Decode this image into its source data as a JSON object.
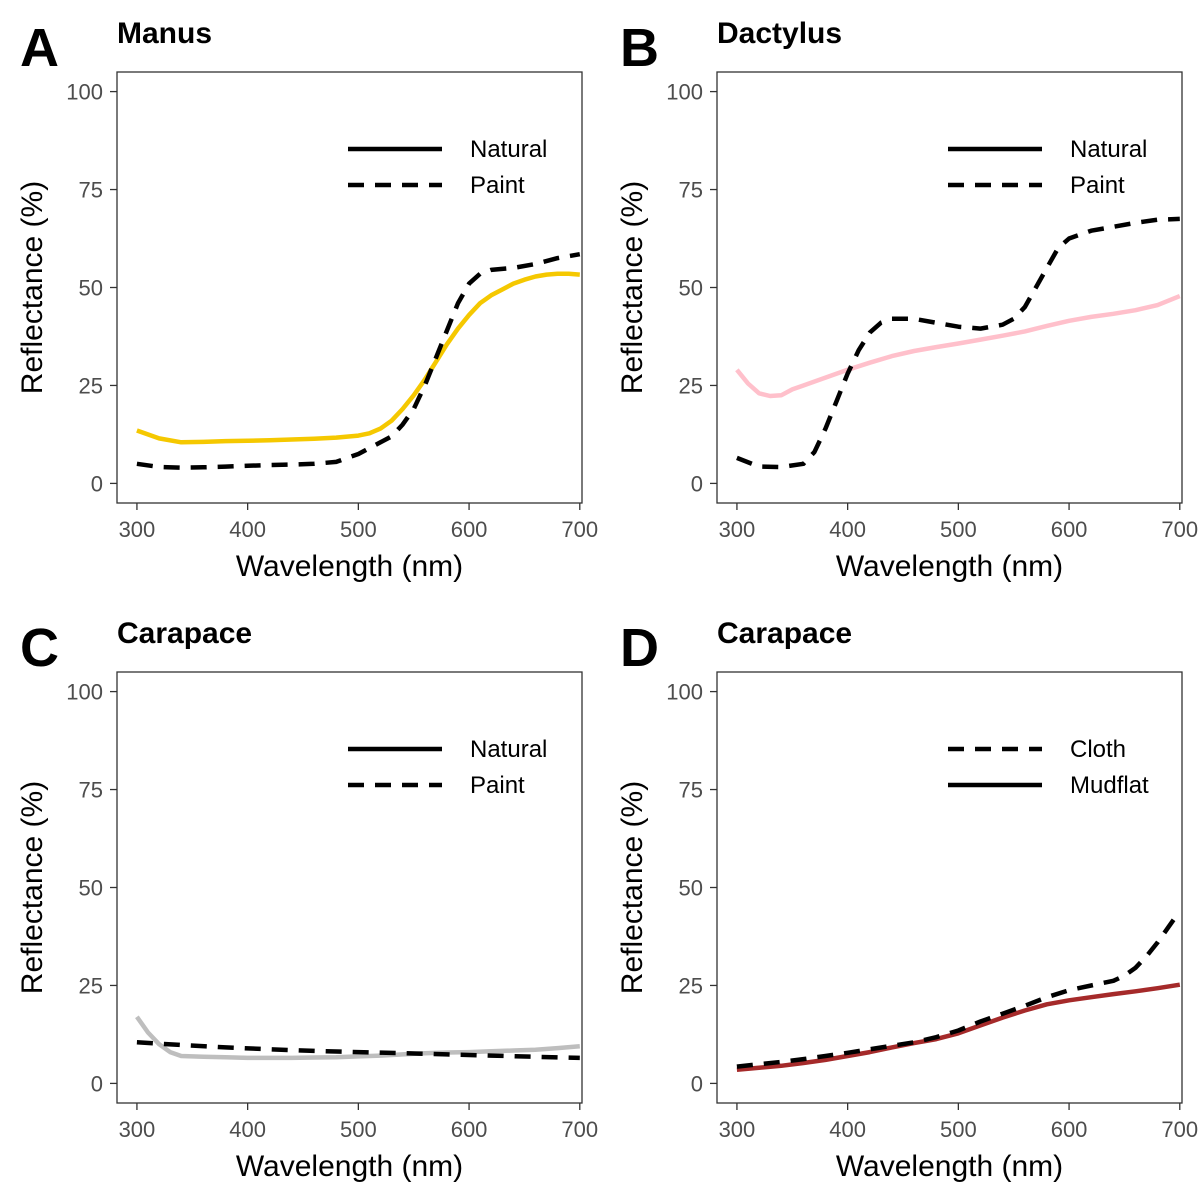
{
  "chart_data": [
    {
      "type": "line",
      "letter": "A",
      "title": "Manus",
      "xlabel": "Wavelength (nm)",
      "ylabel": "Reflectance (%)",
      "xlim": [
        282,
        702
      ],
      "ylim": [
        -5,
        105
      ],
      "xticks": [
        300,
        400,
        500,
        600,
        700
      ],
      "yticks": [
        0,
        25,
        50,
        75,
        100
      ],
      "grid": false,
      "legend_position": "top-right",
      "legend": [
        {
          "label": "Natural",
          "dash": "solid"
        },
        {
          "label": "Paint",
          "dash": "dashed"
        }
      ],
      "series": [
        {
          "name": "Natural",
          "dash": "solid",
          "color": "#F5C800",
          "x": [
            300,
            320,
            340,
            360,
            380,
            400,
            420,
            440,
            460,
            480,
            500,
            510,
            520,
            530,
            540,
            550,
            560,
            570,
            580,
            590,
            600,
            610,
            620,
            630,
            640,
            650,
            660,
            670,
            680,
            690,
            700
          ],
          "y": [
            13.5,
            11.5,
            10.5,
            10.6,
            10.8,
            10.9,
            11.0,
            11.2,
            11.4,
            11.7,
            12.2,
            12.8,
            14,
            16,
            19,
            22.5,
            26.5,
            31,
            35.5,
            39.5,
            43,
            46,
            48,
            49.5,
            51,
            52,
            52.8,
            53.3,
            53.5,
            53.5,
            53.3
          ]
        },
        {
          "name": "Paint",
          "dash": "dashed",
          "color": "#000000",
          "x": [
            300,
            320,
            340,
            360,
            380,
            400,
            420,
            440,
            460,
            480,
            500,
            510,
            520,
            530,
            540,
            550,
            560,
            570,
            580,
            590,
            600,
            610,
            620,
            640,
            660,
            680,
            700
          ],
          "y": [
            5,
            4.2,
            4.0,
            4.1,
            4.3,
            4.5,
            4.7,
            4.8,
            5.0,
            5.5,
            7.5,
            9,
            10.5,
            12,
            15,
            19,
            25,
            32,
            39,
            46,
            51,
            53.5,
            54.5,
            55,
            56,
            57.5,
            58.5
          ]
        }
      ]
    },
    {
      "type": "line",
      "letter": "B",
      "title": "Dactylus",
      "xlabel": "Wavelength (nm)",
      "ylabel": "Reflectance (%)",
      "xlim": [
        282,
        702
      ],
      "ylim": [
        -5,
        105
      ],
      "xticks": [
        300,
        400,
        500,
        600,
        700
      ],
      "yticks": [
        0,
        25,
        50,
        75,
        100
      ],
      "grid": false,
      "legend_position": "top-right",
      "legend": [
        {
          "label": "Natural",
          "dash": "solid"
        },
        {
          "label": "Paint",
          "dash": "dashed"
        }
      ],
      "series": [
        {
          "name": "Natural",
          "dash": "solid",
          "color": "#FFC0CB",
          "x": [
            300,
            310,
            320,
            330,
            340,
            350,
            360,
            380,
            400,
            420,
            440,
            460,
            480,
            500,
            520,
            540,
            560,
            580,
            600,
            620,
            640,
            660,
            680,
            700
          ],
          "y": [
            29,
            25.5,
            23,
            22.3,
            22.5,
            24,
            25,
            27,
            29,
            30.8,
            32.5,
            33.8,
            34.8,
            35.7,
            36.7,
            37.7,
            38.8,
            40.2,
            41.5,
            42.5,
            43.3,
            44.2,
            45.5,
            47.8
          ]
        },
        {
          "name": "Paint",
          "dash": "dashed",
          "color": "#000000",
          "x": [
            300,
            320,
            340,
            360,
            370,
            380,
            390,
            400,
            410,
            420,
            430,
            440,
            460,
            480,
            500,
            520,
            540,
            550,
            560,
            570,
            580,
            590,
            600,
            620,
            640,
            660,
            680,
            700
          ],
          "y": [
            6.5,
            4.3,
            4.2,
            5.0,
            8,
            14,
            21,
            28,
            34,
            38.5,
            41,
            42,
            42,
            41,
            40,
            39.5,
            40.5,
            42,
            45,
            50,
            55,
            60,
            62.5,
            64.5,
            65.5,
            66.5,
            67.3,
            67.5
          ]
        }
      ]
    },
    {
      "type": "line",
      "letter": "C",
      "title": "Carapace",
      "xlabel": "Wavelength (nm)",
      "ylabel": "Reflectance (%)",
      "xlim": [
        282,
        702
      ],
      "ylim": [
        -5,
        105
      ],
      "xticks": [
        300,
        400,
        500,
        600,
        700
      ],
      "yticks": [
        0,
        25,
        50,
        75,
        100
      ],
      "grid": false,
      "legend_position": "top-right",
      "legend": [
        {
          "label": "Natural",
          "dash": "solid"
        },
        {
          "label": "Paint",
          "dash": "dashed"
        }
      ],
      "series": [
        {
          "name": "Natural",
          "dash": "solid",
          "color": "#BEBEBE",
          "x": [
            300,
            310,
            320,
            330,
            340,
            360,
            380,
            400,
            420,
            440,
            460,
            480,
            500,
            520,
            540,
            560,
            580,
            600,
            620,
            640,
            660,
            680,
            700
          ],
          "y": [
            17,
            13,
            10,
            8,
            7,
            6.8,
            6.7,
            6.5,
            6.5,
            6.5,
            6.6,
            6.7,
            6.9,
            7.1,
            7.4,
            7.7,
            7.9,
            8.0,
            8.2,
            8.4,
            8.6,
            9.0,
            9.5
          ]
        },
        {
          "name": "Paint",
          "dash": "dashed",
          "color": "#000000",
          "x": [
            300,
            340,
            380,
            420,
            460,
            500,
            540,
            580,
            620,
            660,
            700
          ],
          "y": [
            10.5,
            9.8,
            9.2,
            8.7,
            8.3,
            8.0,
            7.7,
            7.4,
            7.1,
            6.8,
            6.5
          ]
        }
      ]
    },
    {
      "type": "line",
      "letter": "D",
      "title": "Carapace",
      "xlabel": "Wavelength (nm)",
      "ylabel": "Reflectance (%)",
      "xlim": [
        282,
        702
      ],
      "ylim": [
        -5,
        105
      ],
      "xticks": [
        300,
        400,
        500,
        600,
        700
      ],
      "yticks": [
        0,
        25,
        50,
        75,
        100
      ],
      "grid": false,
      "legend_position": "top-right",
      "legend": [
        {
          "label": "Cloth",
          "dash": "dashed"
        },
        {
          "label": "Mudflat",
          "dash": "solid"
        }
      ],
      "series": [
        {
          "name": "Mudflat",
          "dash": "solid",
          "color": "#A52A2A",
          "x": [
            300,
            320,
            340,
            360,
            380,
            400,
            420,
            440,
            460,
            480,
            500,
            520,
            540,
            560,
            580,
            600,
            620,
            640,
            660,
            680,
            700
          ],
          "y": [
            3.5,
            4.0,
            4.5,
            5.2,
            6.0,
            7.0,
            8.0,
            9.2,
            10.3,
            11.3,
            12.8,
            14.8,
            16.8,
            18.6,
            20.2,
            21.2,
            22.0,
            22.8,
            23.5,
            24.3,
            25.2
          ]
        },
        {
          "name": "Cloth",
          "dash": "dashed",
          "color": "#000000",
          "x": [
            300,
            320,
            340,
            360,
            380,
            400,
            420,
            440,
            460,
            480,
            500,
            520,
            540,
            560,
            580,
            600,
            620,
            640,
            650,
            660,
            670,
            680,
            690,
            700
          ],
          "y": [
            4.3,
            4.9,
            5.5,
            6.2,
            7.0,
            7.8,
            8.7,
            9.6,
            10.5,
            11.8,
            13.5,
            15.8,
            17.8,
            19.8,
            22.0,
            23.8,
            25.0,
            26.2,
            27.5,
            29.5,
            32.5,
            36,
            40,
            44
          ]
        }
      ]
    }
  ]
}
